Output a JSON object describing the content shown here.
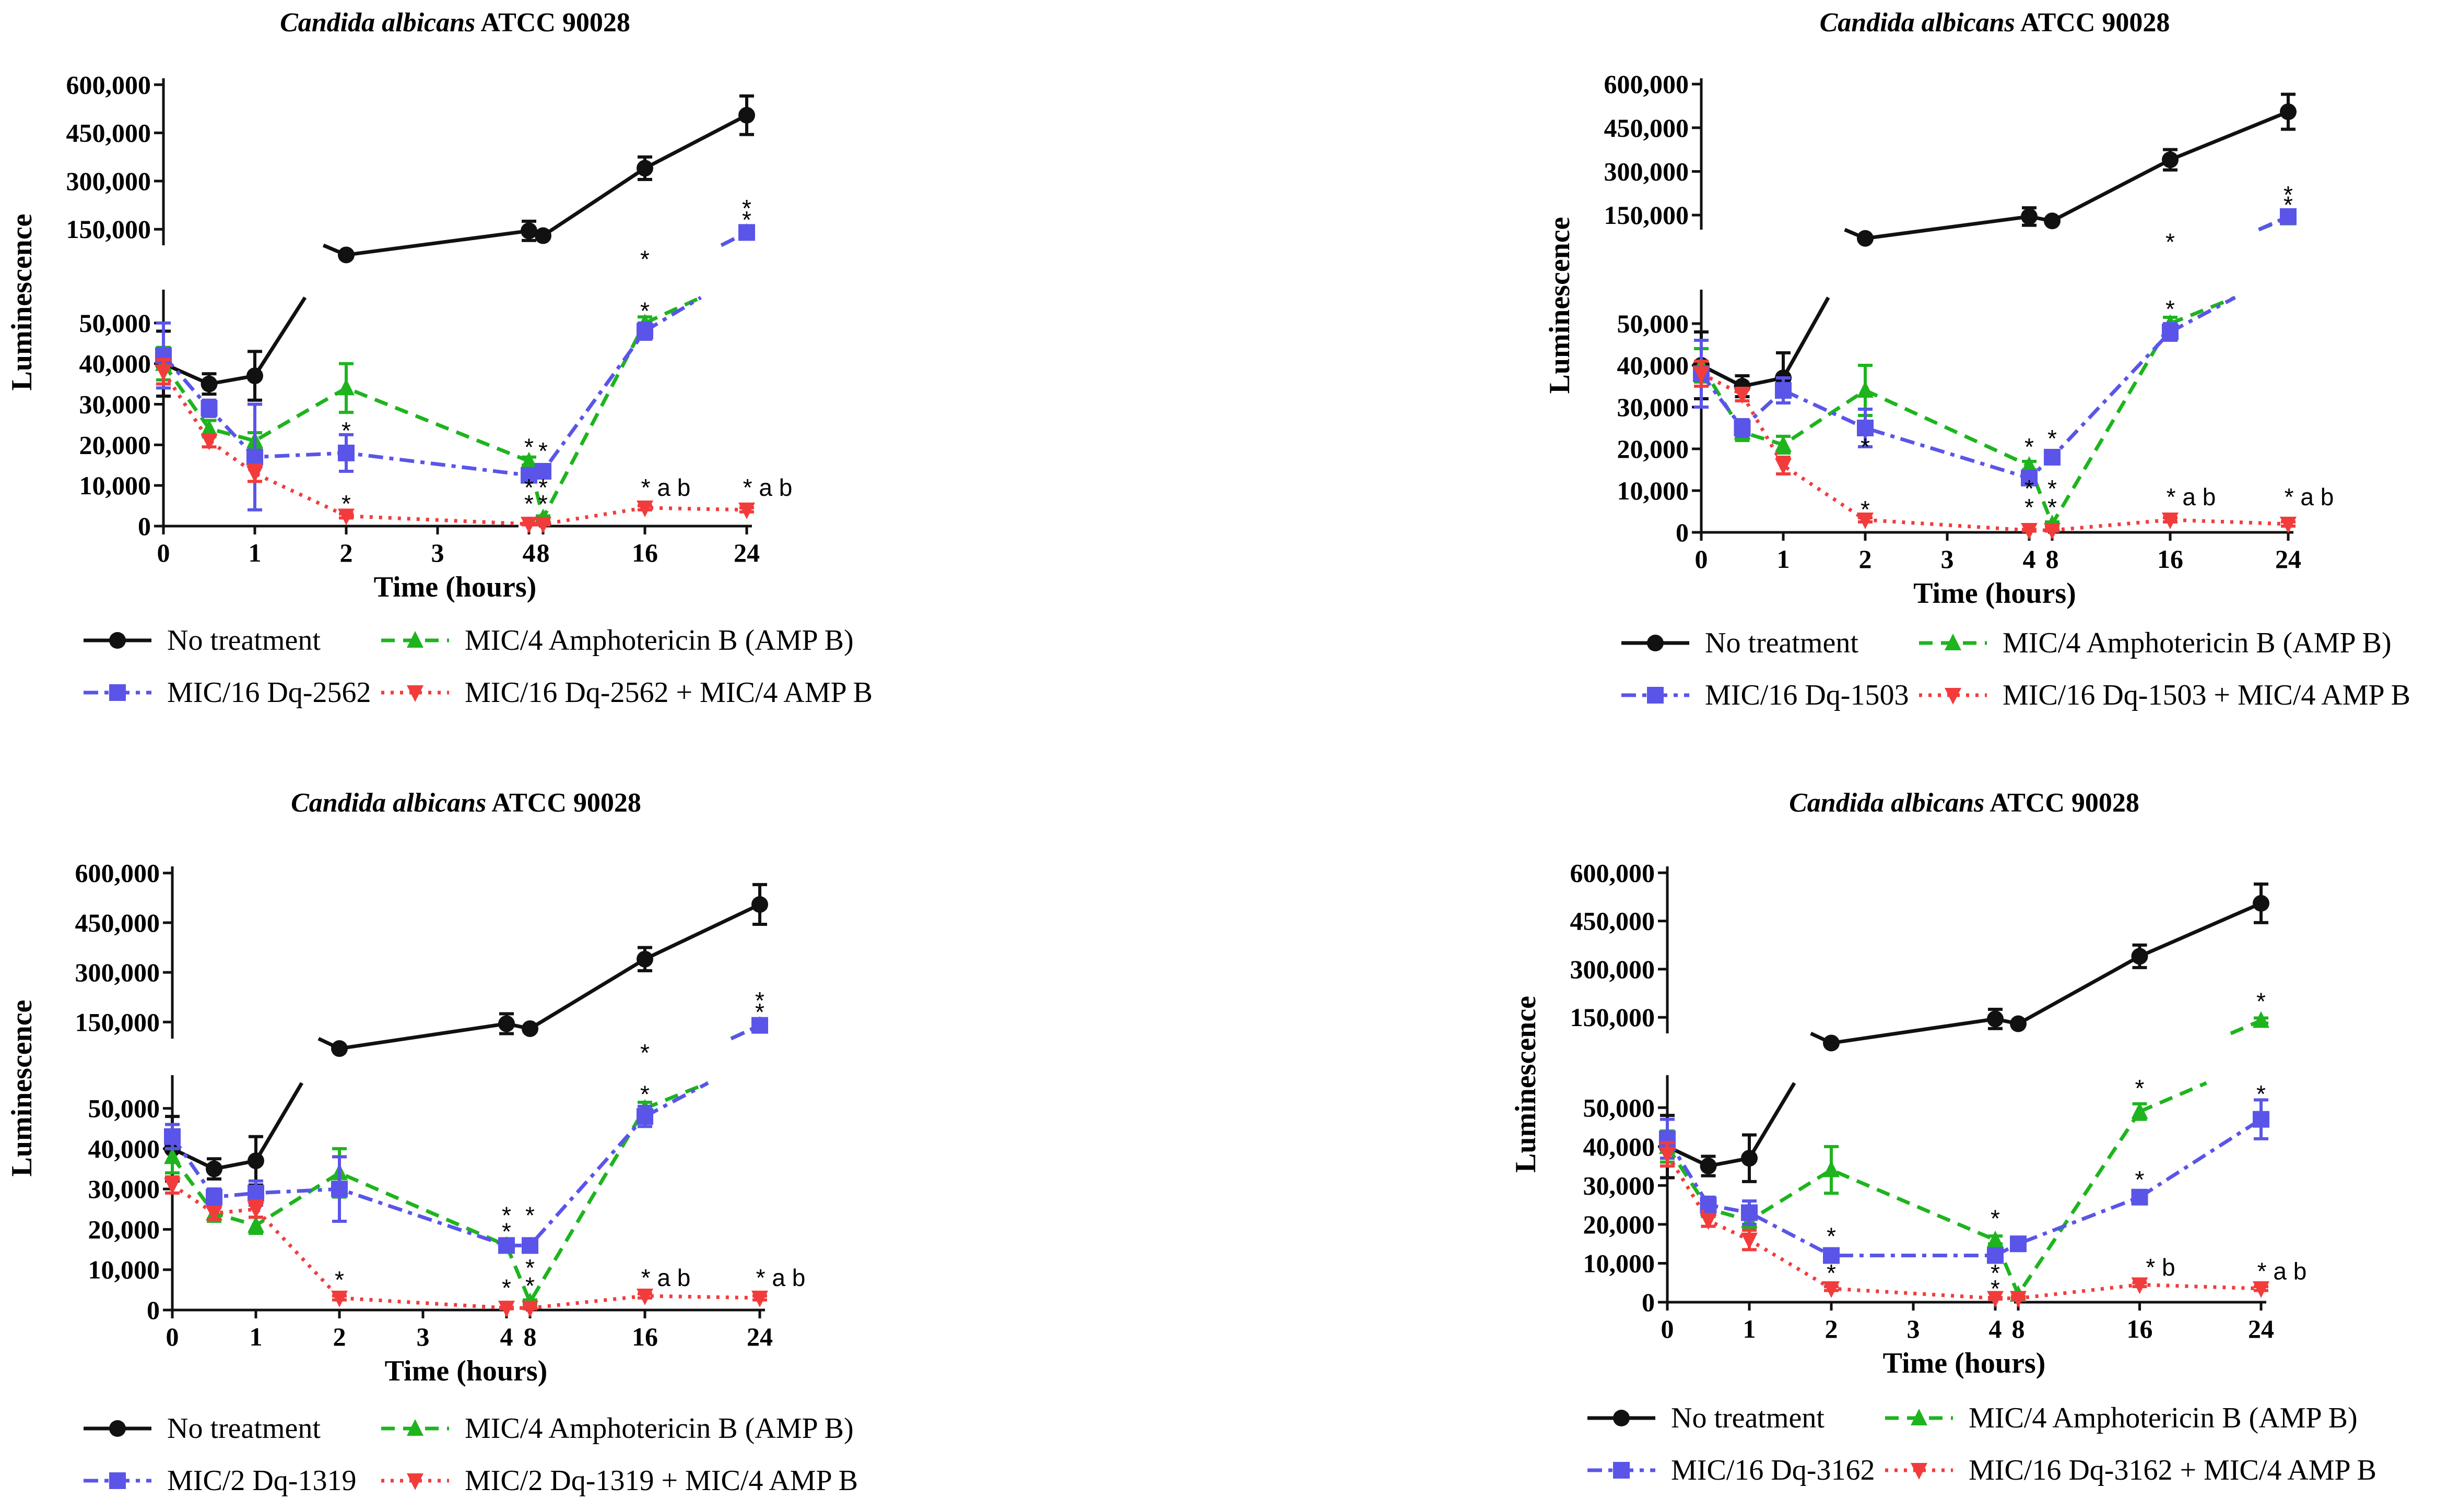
{
  "colors": {
    "black": "#111111",
    "green": "#1eb41e",
    "blue": "#5a55e8",
    "red": "#f23c3c"
  },
  "chart_data": [
    {
      "type": "line",
      "title_italic": "Candida albicans",
      "title_rest": " ATCC 90028",
      "xlabel": "Time (hours)",
      "ylabel": "Luminescence",
      "x": [
        0,
        0.5,
        1,
        2,
        4,
        8,
        16,
        24
      ],
      "xticks": [
        "0",
        "1",
        "2",
        "3",
        "4",
        "8",
        "16",
        "24"
      ],
      "yticks_upper": [
        "600,000",
        "450,000",
        "300,000",
        "150,000"
      ],
      "yticks_lower": [
        "50,000",
        "40,000",
        "30,000",
        "20,000",
        "10,000",
        "0"
      ],
      "series": [
        {
          "name": "No treatment",
          "color": "black",
          "marker": "circle",
          "dash": "solid",
          "values": [
            40000,
            35000,
            37000,
            70000,
            145000,
            130000,
            340000,
            505000
          ],
          "errors": [
            8000,
            2500,
            6000,
            0,
            30000,
            0,
            35000,
            60000
          ]
        },
        {
          "name": "MIC/4 Amphotericin B (AMP B)",
          "color": "green",
          "marker": "triangle-up",
          "dash": "dashed",
          "values": [
            40000,
            24000,
            21000,
            34000,
            16000,
            2000,
            50000,
            140000
          ],
          "errors": [
            4000,
            2000,
            2000,
            6000,
            1000,
            500,
            1500,
            8000
          ]
        },
        {
          "name": "MIC/16 Dq-2562",
          "color": "blue",
          "marker": "square",
          "dash": "dashdot",
          "values": [
            42000,
            29000,
            17000,
            18000,
            12500,
            13500,
            48000,
            140000
          ],
          "errors": [
            8000,
            2000,
            13000,
            4500,
            1000,
            1000,
            2000,
            8000
          ]
        },
        {
          "name": "MIC/16 Dq-2562 + MIC/4 AMP B",
          "color": "red",
          "marker": "triangle-down",
          "dash": "dotted",
          "values": [
            38000,
            21000,
            13000,
            2500,
            500,
            500,
            4500,
            4000
          ],
          "errors": [
            3000,
            1500,
            2000,
            500,
            200,
            200,
            500,
            500
          ]
        }
      ],
      "annotations": [
        {
          "x": 2,
          "y": 23500,
          "text": "*"
        },
        {
          "x": 2,
          "y": 5500,
          "text": "*"
        },
        {
          "x": 4,
          "y": 19500,
          "text": "*"
        },
        {
          "x": 4,
          "y": 9500,
          "text": "*"
        },
        {
          "x": 4,
          "y": 5500,
          "text": "*"
        },
        {
          "x": 8,
          "y": 18500,
          "text": "*"
        },
        {
          "x": 8,
          "y": 9500,
          "text": "*"
        },
        {
          "x": 8,
          "y": 5500,
          "text": "*"
        },
        {
          "x": 16,
          "y": 57000,
          "text": "*"
        },
        {
          "x": 16,
          "y": 53000,
          "text": "*"
        },
        {
          "x": 16,
          "y": 9500,
          "text": "* a b"
        },
        {
          "x": 24,
          "y": 215000,
          "text": "*"
        },
        {
          "x": 24,
          "y": 180000,
          "text": "*"
        },
        {
          "x": 24,
          "y": 9500,
          "text": "* a b"
        }
      ]
    },
    {
      "type": "line",
      "title_italic": "Candida albicans",
      "title_rest": " ATCC 90028",
      "xlabel": "Time (hours)",
      "ylabel": "Luminescence",
      "x": [
        0,
        0.5,
        1,
        2,
        4,
        8,
        16,
        24
      ],
      "xticks": [
        "0",
        "1",
        "2",
        "3",
        "4",
        "8",
        "16",
        "24"
      ],
      "yticks_upper": [
        "600,000",
        "450,000",
        "300,000",
        "150,000"
      ],
      "yticks_lower": [
        "50,000",
        "40,000",
        "30,000",
        "20,000",
        "10,000",
        "0"
      ],
      "series": [
        {
          "name": "No treatment",
          "color": "black",
          "marker": "circle",
          "dash": "solid",
          "values": [
            40000,
            35000,
            37000,
            70000,
            145000,
            130000,
            340000,
            505000
          ],
          "errors": [
            8000,
            2500,
            6000,
            0,
            30000,
            0,
            35000,
            60000
          ]
        },
        {
          "name": "MIC/4 Amphotericin B (AMP B)",
          "color": "green",
          "marker": "triangle-up",
          "dash": "dashed",
          "values": [
            40000,
            24000,
            21000,
            34000,
            16000,
            2000,
            50000,
            140000
          ],
          "errors": [
            4000,
            2000,
            2000,
            6000,
            1000,
            500,
            1500,
            8000
          ]
        },
        {
          "name": "MIC/16 Dq-1503",
          "color": "blue",
          "marker": "square",
          "dash": "dashdot",
          "values": [
            38000,
            25000,
            34000,
            25000,
            13000,
            18000,
            48000,
            145000
          ],
          "errors": [
            8000,
            2000,
            3000,
            4500,
            1000,
            1000,
            2000,
            8000
          ]
        },
        {
          "name": "MIC/16 Dq-1503 + MIC/4 AMP B",
          "color": "red",
          "marker": "triangle-down",
          "dash": "dotted",
          "values": [
            38000,
            33000,
            16000,
            3000,
            500,
            500,
            3000,
            2000
          ],
          "errors": [
            3000,
            1500,
            2000,
            500,
            200,
            200,
            500,
            500
          ]
        }
      ],
      "annotations": [
        {
          "x": 2,
          "y": 20500,
          "text": "*"
        },
        {
          "x": 2,
          "y": 5500,
          "text": "*"
        },
        {
          "x": 4,
          "y": 20500,
          "text": "*"
        },
        {
          "x": 4,
          "y": 10500,
          "text": "*"
        },
        {
          "x": 4,
          "y": 6000,
          "text": "*"
        },
        {
          "x": 8,
          "y": 22500,
          "text": "*"
        },
        {
          "x": 8,
          "y": 10500,
          "text": "*"
        },
        {
          "x": 8,
          "y": 6000,
          "text": "*"
        },
        {
          "x": 16,
          "y": 57500,
          "text": "*"
        },
        {
          "x": 16,
          "y": 53500,
          "text": "*"
        },
        {
          "x": 16,
          "y": 8500,
          "text": "* a b"
        },
        {
          "x": 24,
          "y": 220000,
          "text": "*"
        },
        {
          "x": 24,
          "y": 185000,
          "text": "*"
        },
        {
          "x": 24,
          "y": 8500,
          "text": "* a b"
        }
      ]
    },
    {
      "type": "line",
      "title_italic": "Candida albicans",
      "title_rest": " ATCC 90028",
      "xlabel": "Time (hours)",
      "ylabel": "Luminescence",
      "x": [
        0,
        0.5,
        1,
        2,
        4,
        8,
        16,
        24
      ],
      "xticks": [
        "0",
        "1",
        "2",
        "3",
        "4",
        "8",
        "16",
        "24"
      ],
      "yticks_upper": [
        "600,000",
        "450,000",
        "300,000",
        "150,000"
      ],
      "yticks_lower": [
        "50,000",
        "40,000",
        "30,000",
        "20,000",
        "10,000",
        "0"
      ],
      "series": [
        {
          "name": "No treatment",
          "color": "black",
          "marker": "circle",
          "dash": "solid",
          "values": [
            40000,
            35000,
            37000,
            70000,
            145000,
            130000,
            340000,
            505000
          ],
          "errors": [
            8000,
            2500,
            6000,
            0,
            30000,
            0,
            35000,
            60000
          ]
        },
        {
          "name": "MIC/4 Amphotericin B (AMP B)",
          "color": "green",
          "marker": "triangle-up",
          "dash": "dashed",
          "values": [
            38000,
            24000,
            21000,
            34000,
            16000,
            2000,
            50000,
            140000
          ],
          "errors": [
            4000,
            2000,
            2000,
            6000,
            1000,
            500,
            1500,
            8000
          ]
        },
        {
          "name": "MIC/2 Dq-1319",
          "color": "blue",
          "marker": "square",
          "dash": "dashdot",
          "values": [
            43000,
            28000,
            29000,
            30000,
            16000,
            16000,
            48000,
            140000
          ],
          "errors": [
            3000,
            2000,
            3000,
            8000,
            1000,
            1000,
            2500,
            8000
          ]
        },
        {
          "name": "MIC/2 Dq-1319 + MIC/4 AMP B",
          "color": "red",
          "marker": "triangle-down",
          "dash": "dotted",
          "values": [
            31000,
            24000,
            25000,
            3000,
            500,
            500,
            3500,
            3000
          ],
          "errors": [
            2000,
            1500,
            2000,
            500,
            200,
            200,
            500,
            500
          ]
        }
      ],
      "annotations": [
        {
          "x": 2,
          "y": 7500,
          "text": "*"
        },
        {
          "x": 4,
          "y": 23500,
          "text": "*"
        },
        {
          "x": 4,
          "y": 19500,
          "text": "*"
        },
        {
          "x": 4,
          "y": 5500,
          "text": "*"
        },
        {
          "x": 8,
          "y": 23500,
          "text": "*"
        },
        {
          "x": 8,
          "y": 10500,
          "text": "*"
        },
        {
          "x": 8,
          "y": 6000,
          "text": "*"
        },
        {
          "x": 16,
          "y": 57500,
          "text": "*"
        },
        {
          "x": 16,
          "y": 53500,
          "text": "*"
        },
        {
          "x": 16,
          "y": 8000,
          "text": "* a b"
        },
        {
          "x": 24,
          "y": 215000,
          "text": "*"
        },
        {
          "x": 24,
          "y": 180000,
          "text": "*"
        },
        {
          "x": 24,
          "y": 8000,
          "text": "* a b"
        }
      ]
    },
    {
      "type": "line",
      "title_italic": "Candida albicans",
      "title_rest": " ATCC 90028",
      "xlabel": "Time (hours)",
      "ylabel": "Luminescence",
      "x": [
        0,
        0.5,
        1,
        2,
        4,
        8,
        16,
        24
      ],
      "xticks": [
        "0",
        "1",
        "2",
        "3",
        "4",
        "8",
        "16",
        "24"
      ],
      "yticks_upper": [
        "600,000",
        "450,000",
        "300,000",
        "150,000"
      ],
      "yticks_lower": [
        "50,000",
        "40,000",
        "30,000",
        "20,000",
        "10,000",
        "0"
      ],
      "series": [
        {
          "name": "No treatment",
          "color": "black",
          "marker": "circle",
          "dash": "solid",
          "values": [
            40000,
            35000,
            37000,
            70000,
            145000,
            130000,
            340000,
            505000
          ],
          "errors": [
            8000,
            2500,
            6000,
            0,
            30000,
            0,
            35000,
            60000
          ]
        },
        {
          "name": "MIC/4 Amphotericin B (AMP B)",
          "color": "green",
          "marker": "triangle-up",
          "dash": "dashed",
          "values": [
            40000,
            24000,
            21000,
            34000,
            16000,
            2000,
            49000,
            140000
          ],
          "errors": [
            4000,
            2000,
            2000,
            6000,
            1000,
            500,
            2000,
            8000
          ]
        },
        {
          "name": "MIC/16 Dq-3162",
          "color": "blue",
          "marker": "square",
          "dash": "dashdot",
          "values": [
            42000,
            25000,
            23000,
            12000,
            12000,
            15000,
            27000,
            47000
          ],
          "errors": [
            5000,
            2000,
            3000,
            1000,
            1000,
            1000,
            1500,
            5000
          ]
        },
        {
          "name": "MIC/16 Dq-3162 + MIC/4 AMP B",
          "color": "red",
          "marker": "triangle-down",
          "dash": "dotted",
          "values": [
            38000,
            21000,
            16000,
            3500,
            1000,
            1000,
            4500,
            3500
          ],
          "errors": [
            3000,
            1500,
            2500,
            500,
            200,
            200,
            500,
            500
          ]
        }
      ],
      "annotations": [
        {
          "x": 2,
          "y": 17000,
          "text": "*"
        },
        {
          "x": 2,
          "y": 7500,
          "text": "*"
        },
        {
          "x": 4,
          "y": 21500,
          "text": "*"
        },
        {
          "x": 4,
          "y": 7500,
          "text": "*"
        },
        {
          "x": 4,
          "y": 3500,
          "text": "*"
        },
        {
          "x": 16,
          "y": 55000,
          "text": "*"
        },
        {
          "x": 16,
          "y": 31500,
          "text": "*"
        },
        {
          "x": 16,
          "y": 9000,
          "text": "* b"
        },
        {
          "x": 24,
          "y": 200000,
          "text": "*"
        },
        {
          "x": 24,
          "y": 53500,
          "text": "*"
        },
        {
          "x": 24,
          "y": 8000,
          "text": "* a b"
        }
      ]
    }
  ]
}
